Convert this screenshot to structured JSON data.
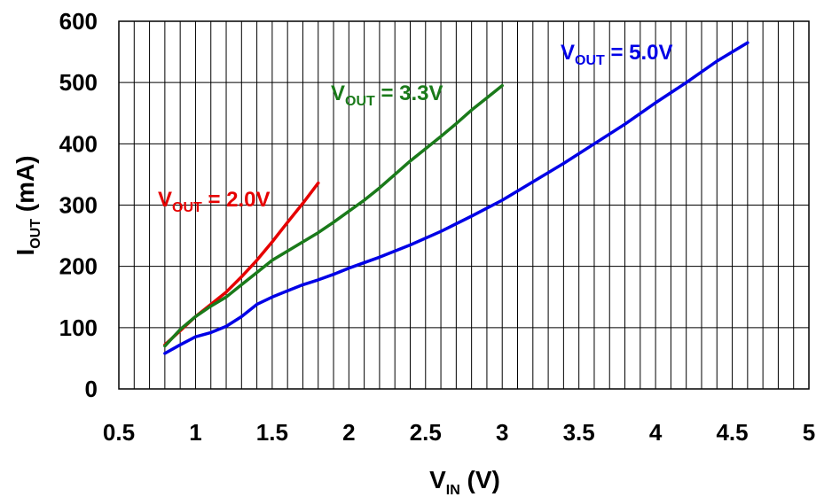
{
  "chart_data": {
    "type": "line",
    "xlabel": {
      "main": "V",
      "sub": "IN",
      "suffix": " (V)"
    },
    "ylabel": {
      "main": "I",
      "sub": "OUT",
      "suffix": " (mA)"
    },
    "xlim": [
      0.5,
      5
    ],
    "ylim": [
      0,
      600
    ],
    "x_ticks": [
      "0.5",
      "1",
      "1.5",
      "2",
      "2.5",
      "3",
      "3.5",
      "4",
      "4.5",
      "5"
    ],
    "y_ticks": [
      "0",
      "100",
      "200",
      "300",
      "400",
      "500",
      "600"
    ],
    "grid": true,
    "series": [
      {
        "label": {
          "main": "V",
          "sub": "OUT",
          "suffix": " = 2.0V"
        },
        "color": "#e60000",
        "x": [
          0.8,
          0.9,
          1.0,
          1.1,
          1.2,
          1.3,
          1.4,
          1.5,
          1.6,
          1.7,
          1.8
        ],
        "y": [
          72,
          95,
          118,
          138,
          158,
          183,
          210,
          240,
          272,
          303,
          336
        ]
      },
      {
        "label": {
          "main": "V",
          "sub": "OUT",
          "suffix": " = 3.3V"
        },
        "color": "#1a7a1a",
        "x": [
          0.8,
          0.9,
          1.0,
          1.1,
          1.2,
          1.3,
          1.4,
          1.5,
          1.6,
          1.7,
          1.8,
          1.9,
          2.0,
          2.1,
          2.2,
          2.3,
          2.4,
          2.5,
          2.6,
          2.7,
          2.8,
          2.9,
          3.0
        ],
        "y": [
          70,
          97,
          118,
          135,
          150,
          170,
          190,
          210,
          225,
          240,
          255,
          272,
          290,
          308,
          328,
          350,
          372,
          392,
          412,
          433,
          455,
          475,
          495
        ]
      },
      {
        "label": {
          "main": "V",
          "sub": "OUT",
          "suffix": " = 5.0V"
        },
        "color": "#0000e6",
        "x": [
          0.8,
          0.9,
          1.0,
          1.1,
          1.2,
          1.3,
          1.4,
          1.5,
          1.6,
          1.7,
          1.8,
          1.9,
          2.0,
          2.2,
          2.4,
          2.6,
          2.8,
          3.0,
          3.2,
          3.4,
          3.6,
          3.8,
          4.0,
          4.2,
          4.4,
          4.6
        ],
        "y": [
          58,
          72,
          85,
          92,
          102,
          118,
          138,
          150,
          160,
          170,
          178,
          187,
          197,
          215,
          235,
          257,
          282,
          308,
          338,
          368,
          400,
          432,
          467,
          500,
          535,
          565
        ]
      }
    ]
  }
}
